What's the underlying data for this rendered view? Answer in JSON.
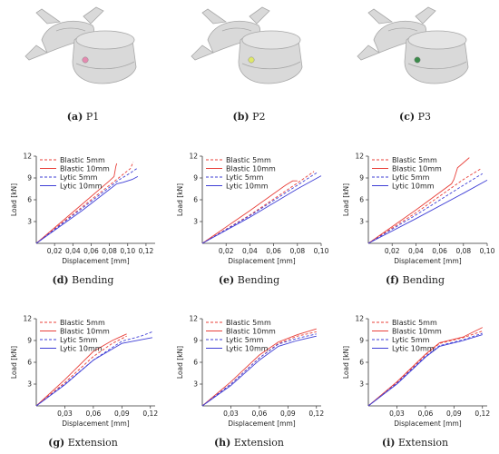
{
  "colors": {
    "blastic": "#e8403a",
    "lytic": "#3f3fd6",
    "bone": "#d9d9d9",
    "bone_edge": "#a8a8a8",
    "axis": "#333333"
  },
  "vertebrae": [
    {
      "caption_letter": "(a)",
      "caption_text": "P1",
      "marker_color": "#e58ab0",
      "icon": "vertebra-icon"
    },
    {
      "caption_letter": "(b)",
      "caption_text": "P2",
      "marker_color": "#dfe86a",
      "icon": "vertebra-icon"
    },
    {
      "caption_letter": "(c)",
      "caption_text": "P3",
      "marker_color": "#3a8a4a",
      "icon": "vertebra-icon"
    }
  ],
  "chart_data": [
    {
      "type": "line",
      "caption_letter": "(d)",
      "caption_text": "Bending",
      "xlabel": "Displacement [mm]",
      "ylabel": "Load [kN]",
      "xlim": [
        0,
        0.13
      ],
      "ylim": [
        0,
        12
      ],
      "xticks": [
        0.02,
        0.04,
        0.06,
        0.08,
        0.1,
        0.12
      ],
      "xtick_labels": [
        "0,02",
        "0,04",
        "0,06",
        "0,08",
        "0,10",
        "0,12"
      ],
      "yticks": [
        3,
        6,
        9,
        12
      ],
      "ytick_labels": [
        "3",
        "6",
        "9",
        "12"
      ],
      "legend": "top-left",
      "series": [
        {
          "name": "Blastic 5mm",
          "style": "dashed",
          "color": "#e8403a",
          "x": [
            0,
            0.05,
            0.09,
            0.103,
            0.106
          ],
          "y": [
            0,
            5,
            9,
            10.3,
            11.2
          ]
        },
        {
          "name": "Blastic 10mm",
          "style": "solid",
          "color": "#e8403a",
          "x": [
            0,
            0.04,
            0.08,
            0.085,
            0.087,
            0.088
          ],
          "y": [
            0,
            4.3,
            8.6,
            9.2,
            10.6,
            11.0
          ]
        },
        {
          "name": "Lytic 5mm",
          "style": "dashed",
          "color": "#3f3fd6",
          "x": [
            0,
            0.05,
            0.09,
            0.103,
            0.11
          ],
          "y": [
            0,
            4.8,
            8.7,
            9.7,
            10.3
          ]
        },
        {
          "name": "Lytic 10mm",
          "style": "solid",
          "color": "#3f3fd6",
          "x": [
            0,
            0.05,
            0.088,
            0.095,
            0.105,
            0.111
          ],
          "y": [
            0,
            4.5,
            8.2,
            8.4,
            8.8,
            9.2
          ]
        }
      ]
    },
    {
      "type": "line",
      "caption_letter": "(e)",
      "caption_text": "Bending",
      "xlabel": "Displacement [mm]",
      "ylabel": "Load [kN]",
      "xlim": [
        0,
        0.1
      ],
      "ylim": [
        0,
        12
      ],
      "xticks": [
        0.02,
        0.04,
        0.06,
        0.08,
        0.1
      ],
      "xtick_labels": [
        "0,02",
        "0,04",
        "0,06",
        "0,08",
        "0,10"
      ],
      "yticks": [
        3,
        6,
        9,
        12
      ],
      "ytick_labels": [
        "3",
        "6",
        "9",
        "12"
      ],
      "legend": "top-left",
      "series": [
        {
          "name": "Blastic 5mm",
          "style": "dashed",
          "color": "#e8403a",
          "x": [
            0,
            0.04,
            0.08,
            0.094
          ],
          "y": [
            0,
            3.9,
            8.3,
            9.9
          ]
        },
        {
          "name": "Blastic 10mm",
          "style": "solid",
          "color": "#e8403a",
          "x": [
            0,
            0.04,
            0.07,
            0.076,
            0.08
          ],
          "y": [
            0,
            4.5,
            8.0,
            8.6,
            8.6
          ]
        },
        {
          "name": "Lytic 5mm",
          "style": "dashed",
          "color": "#3f3fd6",
          "x": [
            0,
            0.04,
            0.08,
            0.097
          ],
          "y": [
            0,
            3.8,
            8.0,
            9.8
          ]
        },
        {
          "name": "Lytic 10mm",
          "style": "solid",
          "color": "#3f3fd6",
          "x": [
            0,
            0.04,
            0.08,
            0.1
          ],
          "y": [
            0,
            3.6,
            7.5,
            9.3
          ]
        }
      ]
    },
    {
      "type": "line",
      "caption_letter": "(f)",
      "caption_text": "Bending",
      "xlabel": "Displacement [mm]",
      "ylabel": "Load [kN]",
      "xlim": [
        0,
        0.1
      ],
      "ylim": [
        0,
        12
      ],
      "xticks": [
        0.02,
        0.04,
        0.06,
        0.08,
        0.1
      ],
      "xtick_labels": [
        "0,02",
        "0,04",
        "0,06",
        "0,08",
        "0,10"
      ],
      "yticks": [
        3,
        6,
        9,
        12
      ],
      "ytick_labels": [
        "3",
        "6",
        "9",
        "12"
      ],
      "legend": "top-left",
      "series": [
        {
          "name": "Blastic 5mm",
          "style": "dashed",
          "color": "#e8403a",
          "x": [
            0,
            0.04,
            0.08,
            0.095
          ],
          "y": [
            0,
            4.2,
            8.8,
            10.3
          ]
        },
        {
          "name": "Blastic 10mm",
          "style": "solid",
          "color": "#e8403a",
          "x": [
            0,
            0.04,
            0.07,
            0.072,
            0.075,
            0.085
          ],
          "y": [
            0,
            4.6,
            8.2,
            8.8,
            10.4,
            11.8
          ]
        },
        {
          "name": "Lytic 5mm",
          "style": "dashed",
          "color": "#3f3fd6",
          "x": [
            0,
            0.04,
            0.08,
            0.096
          ],
          "y": [
            0,
            3.9,
            8.0,
            9.6
          ]
        },
        {
          "name": "Lytic 10mm",
          "style": "solid",
          "color": "#3f3fd6",
          "x": [
            0,
            0.04,
            0.08,
            0.1
          ],
          "y": [
            0,
            3.4,
            6.9,
            8.7
          ]
        }
      ]
    },
    {
      "type": "line",
      "caption_letter": "(g)",
      "caption_text": "Extension",
      "xlabel": "Displacement [mm]",
      "ylabel": "Load [kN]",
      "xlim": [
        0,
        0.125
      ],
      "ylim": [
        0,
        12
      ],
      "xticks": [
        0.03,
        0.06,
        0.09,
        0.12
      ],
      "xtick_labels": [
        "0,03",
        "0,06",
        "0,09",
        "0,12"
      ],
      "yticks": [
        3,
        6,
        9,
        12
      ],
      "ytick_labels": [
        "3",
        "6",
        "9",
        "12"
      ],
      "legend": "top-left",
      "series": [
        {
          "name": "Blastic 5mm",
          "style": "dashed",
          "color": "#e8403a",
          "x": [
            0,
            0.03,
            0.06,
            0.08,
            0.095
          ],
          "y": [
            0,
            3.2,
            6.8,
            8.6,
            9.6
          ]
        },
        {
          "name": "Blastic 10mm",
          "style": "solid",
          "color": "#e8403a",
          "x": [
            0,
            0.03,
            0.06,
            0.08,
            0.095
          ],
          "y": [
            0,
            3.6,
            7.5,
            9.0,
            9.9
          ]
        },
        {
          "name": "Lytic 5mm",
          "style": "dashed",
          "color": "#3f3fd6",
          "x": [
            0,
            0.03,
            0.06,
            0.09,
            0.11,
            0.122
          ],
          "y": [
            0,
            3.0,
            6.3,
            8.9,
            9.6,
            10.2
          ]
        },
        {
          "name": "Lytic 10mm",
          "style": "solid",
          "color": "#3f3fd6",
          "x": [
            0,
            0.03,
            0.06,
            0.09,
            0.11,
            0.122
          ],
          "y": [
            0,
            2.9,
            6.3,
            8.6,
            9.1,
            9.4
          ]
        }
      ]
    },
    {
      "type": "line",
      "caption_letter": "(h)",
      "caption_text": "Extension",
      "xlabel": "Displacement [mm]",
      "ylabel": "Load [kN]",
      "xlim": [
        0,
        0.125
      ],
      "ylim": [
        0,
        12
      ],
      "xticks": [
        0.03,
        0.06,
        0.09,
        0.12
      ],
      "xtick_labels": [
        "0,03",
        "0,06",
        "0,09",
        "0,12"
      ],
      "yticks": [
        3,
        6,
        9,
        12
      ],
      "ytick_labels": [
        "3",
        "6",
        "9",
        "12"
      ],
      "legend": "top-left",
      "series": [
        {
          "name": "Blastic 5mm",
          "style": "dashed",
          "color": "#e8403a",
          "x": [
            0,
            0.03,
            0.06,
            0.08,
            0.1,
            0.12
          ],
          "y": [
            0,
            3.0,
            6.6,
            8.6,
            9.6,
            10.2
          ]
        },
        {
          "name": "Blastic 10mm",
          "style": "solid",
          "color": "#e8403a",
          "x": [
            0,
            0.03,
            0.06,
            0.08,
            0.1,
            0.12
          ],
          "y": [
            0,
            3.3,
            7.0,
            8.8,
            9.8,
            10.6
          ]
        },
        {
          "name": "Lytic 5mm",
          "style": "dashed",
          "color": "#3f3fd6",
          "x": [
            0,
            0.03,
            0.06,
            0.08,
            0.1,
            0.12
          ],
          "y": [
            0,
            3.0,
            6.6,
            8.5,
            9.3,
            9.9
          ]
        },
        {
          "name": "Lytic 10mm",
          "style": "solid",
          "color": "#3f3fd6",
          "x": [
            0,
            0.03,
            0.06,
            0.08,
            0.1,
            0.12
          ],
          "y": [
            0,
            2.8,
            6.3,
            8.2,
            9.0,
            9.6
          ]
        }
      ]
    },
    {
      "type": "line",
      "caption_letter": "(i)",
      "caption_text": "Extension",
      "xlabel": "Displacement [mm]",
      "ylabel": "Load [kN]",
      "xlim": [
        0,
        0.125
      ],
      "ylim": [
        0,
        12
      ],
      "xticks": [
        0.03,
        0.06,
        0.09,
        0.12
      ],
      "xtick_labels": [
        "0,03",
        "0,06",
        "0,09",
        "0,12"
      ],
      "yticks": [
        3,
        6,
        9,
        12
      ],
      "ytick_labels": [
        "3",
        "6",
        "9",
        "12"
      ],
      "legend": "top-left",
      "series": [
        {
          "name": "Blastic 5mm",
          "style": "dashed",
          "color": "#e8403a",
          "x": [
            0,
            0.03,
            0.06,
            0.075,
            0.1,
            0.12
          ],
          "y": [
            0,
            3.2,
            7.0,
            8.6,
            9.4,
            10.3
          ]
        },
        {
          "name": "Blastic 10mm",
          "style": "solid",
          "color": "#e8403a",
          "x": [
            0,
            0.03,
            0.06,
            0.075,
            0.1,
            0.12
          ],
          "y": [
            0,
            3.3,
            7.1,
            8.7,
            9.5,
            10.8
          ]
        },
        {
          "name": "Lytic 5mm",
          "style": "dashed",
          "color": "#3f3fd6",
          "x": [
            0,
            0.03,
            0.06,
            0.075,
            0.1,
            0.12
          ],
          "y": [
            0,
            3.1,
            6.8,
            8.3,
            9.1,
            10.0
          ]
        },
        {
          "name": "Lytic 10mm",
          "style": "solid",
          "color": "#3f3fd6",
          "x": [
            0,
            0.03,
            0.06,
            0.075,
            0.1,
            0.12
          ],
          "y": [
            0,
            3.0,
            6.7,
            8.2,
            9.0,
            9.8
          ]
        }
      ]
    }
  ]
}
